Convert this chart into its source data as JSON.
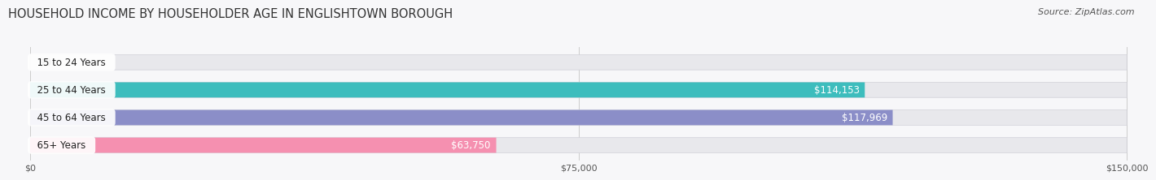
{
  "title": "HOUSEHOLD INCOME BY HOUSEHOLDER AGE IN ENGLISHTOWN BOROUGH",
  "source": "Source: ZipAtlas.com",
  "categories": [
    "15 to 24 Years",
    "25 to 44 Years",
    "45 to 64 Years",
    "65+ Years"
  ],
  "values": [
    0,
    114153,
    117969,
    63750
  ],
  "bar_colors": [
    "#c9aed6",
    "#3dbdbd",
    "#8b8ec8",
    "#f590b0"
  ],
  "bar_bg_color": "#e8e8ec",
  "max_val": 150000,
  "x_ticks": [
    0,
    75000,
    150000
  ],
  "x_tick_labels": [
    "$0",
    "$75,000",
    "$150,000"
  ],
  "title_fontsize": 10.5,
  "source_fontsize": 8,
  "bar_label_fontsize": 8.5,
  "cat_label_fontsize": 8.5,
  "background_color": "#f7f7f9"
}
